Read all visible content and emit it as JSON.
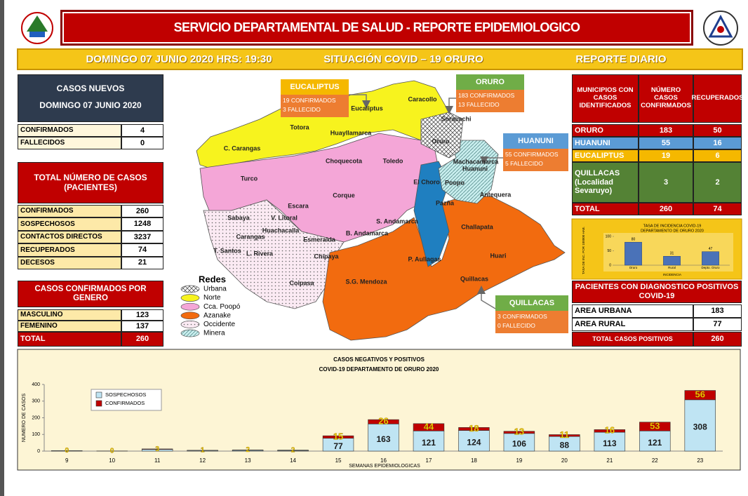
{
  "header": {
    "title": "SERVICIO DEPARTAMENTAL DE SALUD - REPORTE EPIDEMIOLOGICO",
    "date": "DOMINGO 07 JUNIO 2020 HRS: 19:30",
    "situation": "SITUACIÓN COVID – 19 ORURO",
    "report": "REPORTE DIARIO"
  },
  "new_cases": {
    "title": "CASOS NUEVOS",
    "subtitle": "DOMINGO 07 JUNIO 2020",
    "rows": [
      {
        "label": "CONFIRMADOS",
        "value": 4
      },
      {
        "label": "FALLECIDOS",
        "value": 0
      }
    ]
  },
  "total_cases": {
    "title": "TOTAL NÚMERO DE CASOS (PACIENTES)",
    "rows": [
      {
        "label": "CONFIRMADOS",
        "value": 260
      },
      {
        "label": "SOSPECHOSOS",
        "value": 1248
      },
      {
        "label": "CONTACTOS DIRECTOS",
        "value": 3237
      },
      {
        "label": "RECUPERADOS",
        "value": 74
      },
      {
        "label": "DECESOS",
        "value": 21
      }
    ]
  },
  "gender": {
    "title": "CASOS CONFIRMADOS POR GENERO",
    "rows": [
      {
        "label": "MASCULINO",
        "value": 123
      },
      {
        "label": "FEMENINO",
        "value": 137
      }
    ],
    "total": {
      "label": "TOTAL",
      "value": 260
    }
  },
  "map": {
    "regions": [
      "Eucaliptus",
      "Caracollo",
      "Soracachi",
      "Totora",
      "Huayllamarca",
      "C. Carangas",
      "Oruro",
      "Machacamarca",
      "Huanuni",
      "Choquecota",
      "Toledo",
      "Turco",
      "El Choro",
      "Poopo",
      "Antequera",
      "Corque",
      "Pazña",
      "Escara",
      "Sabaya",
      "V. Litoral",
      "S. Andamarca",
      "Challapata",
      "Huachacalla",
      "Carangas",
      "Esmeralda",
      "B. Andamarca",
      "T. Santos",
      "L. Rivera",
      "Chipaya",
      "Huari",
      "P. Aullagas",
      "Coipasa",
      "S.G. Mendoza",
      "Quillacas"
    ],
    "callouts": [
      {
        "title": "EUCALIPTUS",
        "lines": [
          "19 CONFIRMADOS",
          "3 FALLECIDO"
        ]
      },
      {
        "title": "ORURO",
        "lines": [
          "183 CONFIRMADOS",
          "13 FALLECIDO"
        ]
      },
      {
        "title": "HUANUNI",
        "lines": [
          "55 CONFIRMADOS",
          "5 FALLECIDO"
        ]
      },
      {
        "title": "QUILLACAS",
        "lines": [
          "3 CONFIRMADOS",
          "0 FALLECIDO"
        ]
      }
    ],
    "legend": {
      "title": "Redes",
      "items": [
        "Urbana",
        "Norte",
        "Cca. Poopó",
        "Azanake",
        "Occidente",
        "Minera"
      ]
    }
  },
  "municipalities": {
    "headers": [
      "MUNICIPIOS CON CASOS IDENTIFICADOS",
      "NÚMERO CASOS CONFIRMADOS",
      "RECUPERADOS"
    ],
    "rows": [
      {
        "name": "ORURO",
        "confirmed": 183,
        "recovered": 50
      },
      {
        "name": "HUANUNI",
        "confirmed": 55,
        "recovered": 16
      },
      {
        "name": "EUCALIPTUS",
        "confirmed": 19,
        "recovered": 6
      },
      {
        "name": "QUILLACAS (Localidad Sevaruyo)",
        "confirmed": 3,
        "recovered": 2
      }
    ],
    "total": {
      "name": "TOTAL",
      "confirmed": 260,
      "recovered": 74
    }
  },
  "diagnosis": {
    "title": "PACIENTES CON DIAGNOSTICO POSITIVOS COVID-19",
    "rows": [
      {
        "label": "AREA URBANA",
        "value": 183
      },
      {
        "label": "AREA RURAL",
        "value": 77
      }
    ],
    "total": {
      "label": "TOTAL CASOS POSITIVOS",
      "value": 260
    }
  },
  "chart_data": [
    {
      "type": "bar",
      "title": "TASA DE INCIDENCIA COVID-19",
      "subtitle": "DEPARTAMENTO DE ORURO 2020",
      "categories": [
        "Oruro",
        "Rural",
        "Depto. Oruro"
      ],
      "values": [
        80,
        31,
        47
      ],
      "color": "#4a72b8",
      "ylim": [
        0,
        100
      ],
      "yticks": [
        0,
        50,
        100
      ],
      "y_label": "TASA DE INC. POR 100000 HAB.",
      "x_label": "INCIDENCIA"
    },
    {
      "type": "stacked_bar",
      "title": "CASOS NEGATIVOS Y POSITIVOS",
      "subtitle": "COVID-19 DEPARTAMENTO DE ORURO 2020",
      "categories": [
        9,
        10,
        11,
        12,
        13,
        14,
        15,
        16,
        17,
        18,
        19,
        20,
        21,
        22,
        23
      ],
      "series": [
        {
          "name": "SOSPECHOSOS",
          "color": "#bfe4f3",
          "values": [
            3,
            1,
            10,
            4,
            5,
            4,
            77,
            163,
            121,
            124,
            106,
            88,
            113,
            121,
            308
          ]
        },
        {
          "name": "CONFIRMADOS",
          "color": "#c00000",
          "values": [
            0,
            0,
            3,
            1,
            2,
            2,
            15,
            26,
            44,
            18,
            13,
            11,
            16,
            53,
            56
          ]
        }
      ],
      "ylim": [
        0,
        400
      ],
      "yticks": [
        0,
        100,
        200,
        300,
        400
      ],
      "y_label": "NUMERO DE CASOS",
      "x_label": "SEMANAS EPIDEMIOLOGICAS",
      "legend": "top-left"
    }
  ]
}
